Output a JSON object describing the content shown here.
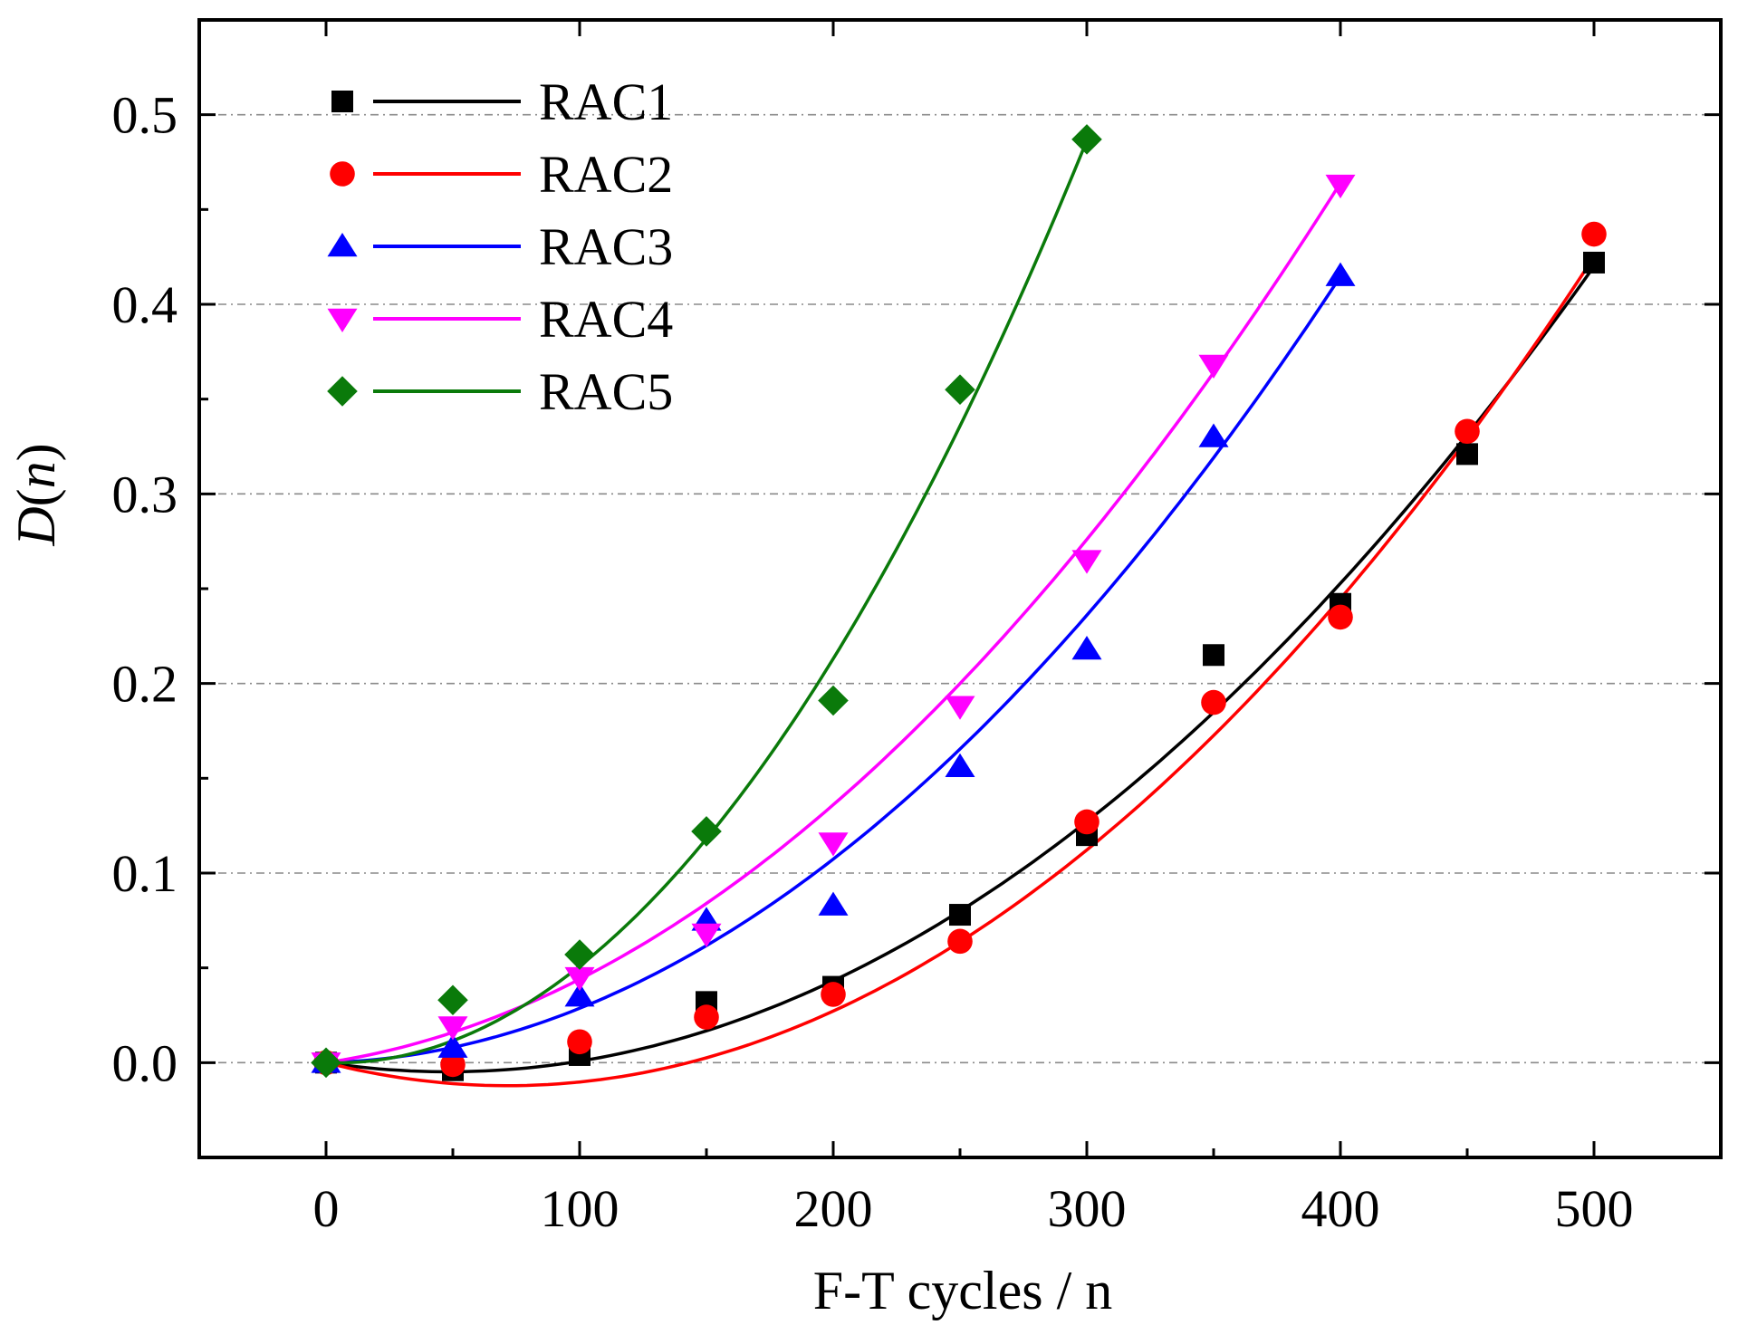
{
  "chart_data": {
    "type": "scatter",
    "title": "",
    "xlabel": "F-T cycles / n",
    "ylabel": "D(n)",
    "ylabel_italic": "D",
    "ylabel_paren_open": "(",
    "ylabel_var": "n",
    "ylabel_paren_close": ")",
    "xlim": [
      -50,
      550
    ],
    "ylim": [
      -0.05,
      0.55
    ],
    "x_ticks": [
      0,
      100,
      200,
      300,
      400,
      500
    ],
    "x_tick_labels": [
      "0",
      "100",
      "200",
      "300",
      "400",
      "500"
    ],
    "y_ticks": [
      0.0,
      0.1,
      0.2,
      0.3,
      0.4,
      0.5
    ],
    "y_tick_labels": [
      "0.0",
      "0.1",
      "0.2",
      "0.3",
      "0.4",
      "0.5"
    ],
    "grid": "horizontal dash-dot",
    "legend_position": "top-left",
    "series": [
      {
        "name": "RAC1",
        "color": "#000000",
        "marker": "square",
        "x": [
          0,
          50,
          100,
          150,
          200,
          250,
          300,
          350,
          400,
          450,
          500
        ],
        "y": [
          0.0,
          -0.004,
          0.004,
          0.032,
          0.04,
          0.078,
          0.12,
          0.215,
          0.242,
          0.321,
          0.422
        ],
        "fit": [
          0.0,
          -0.0002,
          2.08e-06
        ]
      },
      {
        "name": "RAC2",
        "color": "#ff0000",
        "marker": "circle",
        "x": [
          0,
          50,
          100,
          150,
          200,
          250,
          300,
          350,
          400,
          450,
          500
        ],
        "y": [
          0.0,
          -0.001,
          0.011,
          0.024,
          0.036,
          0.064,
          0.127,
          0.19,
          0.235,
          0.333,
          0.437
        ],
        "fit": [
          0.0,
          -0.00034,
          2.38e-06
        ]
      },
      {
        "name": "RAC3",
        "color": "#0000ff",
        "marker": "triangle-up",
        "x": [
          0,
          50,
          100,
          150,
          200,
          250,
          300,
          350,
          400
        ],
        "y": [
          0.0,
          0.008,
          0.035,
          0.075,
          0.083,
          0.156,
          0.218,
          0.33,
          0.415
        ],
        "fit": [
          0.0,
          3.67e-05,
          2.5e-06
        ]
      },
      {
        "name": "RAC4",
        "color": "#ff00ff",
        "marker": "triangle-down",
        "x": [
          0,
          50,
          100,
          150,
          200,
          250,
          300,
          350,
          400
        ],
        "y": [
          0.0,
          0.019,
          0.045,
          0.068,
          0.116,
          0.188,
          0.265,
          0.368,
          0.463
        ],
        "fit": [
          0.0,
          0.0002,
          2.4e-06
        ]
      },
      {
        "name": "RAC5",
        "color": "#0a7a0a",
        "marker": "diamond",
        "x": [
          0,
          50,
          100,
          150,
          200,
          250,
          300
        ],
        "y": [
          0.0,
          0.033,
          0.057,
          0.122,
          0.191,
          0.355,
          0.487
        ],
        "fit": [
          0.0,
          -4.67e-05,
          5.56e-06
        ]
      }
    ]
  }
}
